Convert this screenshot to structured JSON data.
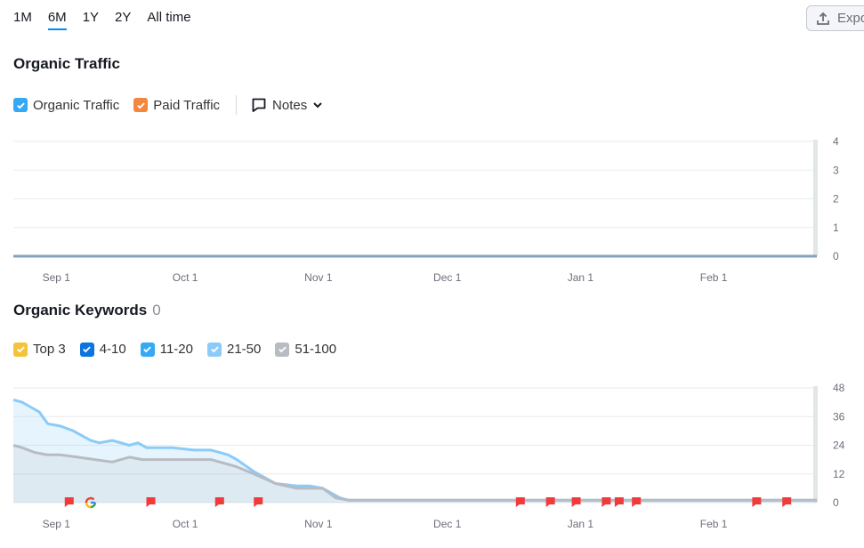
{
  "ranges": {
    "items": [
      "1M",
      "6M",
      "1Y",
      "2Y",
      "All time"
    ],
    "active": "6M"
  },
  "export": {
    "label": "Expo"
  },
  "traffic": {
    "title": "Organic Traffic",
    "legend": [
      {
        "label": "Organic Traffic",
        "color": "#36a9f5"
      },
      {
        "label": "Paid Traffic",
        "color": "#f5863d"
      }
    ],
    "notes_label": "Notes"
  },
  "keywords": {
    "title": "Organic Keywords",
    "count": "0",
    "legend": [
      {
        "label": "Top 3",
        "color": "#f5c33b"
      },
      {
        "label": "4-10",
        "color": "#0b74e0"
      },
      {
        "label": "11-20",
        "color": "#36a9f5"
      },
      {
        "label": "21-50",
        "color": "#8ccbf8"
      },
      {
        "label": "51-100",
        "color": "#b8bbc4"
      }
    ]
  },
  "chart_data": [
    {
      "type": "line",
      "title": "Organic Traffic",
      "x_labels": [
        "Sep 1",
        "Oct 1",
        "Nov 1",
        "Dec 1",
        "Jan 1",
        "Feb 1"
      ],
      "y_ticks": [
        0,
        1,
        2,
        3,
        4
      ],
      "ylim": [
        0,
        4
      ],
      "series": [
        {
          "name": "Organic Traffic",
          "color": "#7fa3c0",
          "x": [
            "Aug 22",
            "Feb 25"
          ],
          "values": [
            0,
            0
          ]
        }
      ],
      "grid": true
    },
    {
      "type": "area",
      "title": "Organic Keywords",
      "x_labels": [
        "Sep 1",
        "Oct 1",
        "Nov 1",
        "Dec 1",
        "Jan 1",
        "Feb 1"
      ],
      "y_ticks": [
        0,
        12,
        24,
        36,
        48
      ],
      "ylim": [
        0,
        48
      ],
      "grid": true,
      "series": [
        {
          "name": "21-50",
          "color": "#8ccbf8",
          "x": [
            "Aug 22",
            "Aug 24",
            "Aug 26",
            "Aug 28",
            "Aug 30",
            "Sep 2",
            "Sep 5",
            "Sep 7",
            "Sep 9",
            "Sep 11",
            "Sep 14",
            "Sep 18",
            "Sep 20",
            "Sep 22",
            "Sep 25",
            "Sep 28",
            "Oct 3",
            "Oct 7",
            "Oct 9",
            "Oct 11",
            "Oct 13",
            "Oct 17",
            "Oct 22",
            "Oct 27",
            "Oct 30",
            "Nov 2",
            "Nov 6",
            "Nov 8",
            "Nov 30",
            "Dec 31",
            "Jan 31",
            "Feb 25"
          ],
          "values": [
            43,
            42,
            40,
            38,
            33,
            32,
            30,
            28,
            26,
            25,
            26,
            24,
            25,
            23,
            23,
            23,
            22,
            22,
            21,
            20,
            18,
            13,
            8,
            7,
            7,
            6,
            2,
            1,
            1,
            1,
            1,
            1
          ]
        },
        {
          "name": "51-100",
          "color": "#b8bbc4",
          "x": [
            "Aug 22",
            "Aug 24",
            "Aug 27",
            "Aug 30",
            "Sep 2",
            "Sep 6",
            "Sep 10",
            "Sep 14",
            "Sep 18",
            "Sep 21",
            "Sep 25",
            "Oct 3",
            "Oct 7",
            "Oct 9",
            "Oct 11",
            "Oct 13",
            "Oct 17",
            "Oct 22",
            "Oct 27",
            "Nov 2",
            "Nov 5",
            "Nov 8",
            "Nov 30",
            "Dec 31",
            "Jan 31",
            "Feb 25"
          ],
          "values": [
            24,
            23,
            21,
            20,
            20,
            19,
            18,
            17,
            19,
            18,
            18,
            18,
            18,
            17,
            16,
            15,
            12,
            8,
            6,
            6,
            2,
            1,
            1,
            1,
            1,
            1
          ]
        }
      ],
      "annotations": {
        "flags": [
          "Sep 4",
          "Sep 23",
          "Oct 9",
          "Oct 18",
          "Dec 18",
          "Dec 25",
          "Dec 31",
          "Jan 7",
          "Jan 10",
          "Jan 14",
          "Feb 11",
          "Feb 18"
        ],
        "google_update": [
          "Sep 9"
        ]
      }
    }
  ]
}
